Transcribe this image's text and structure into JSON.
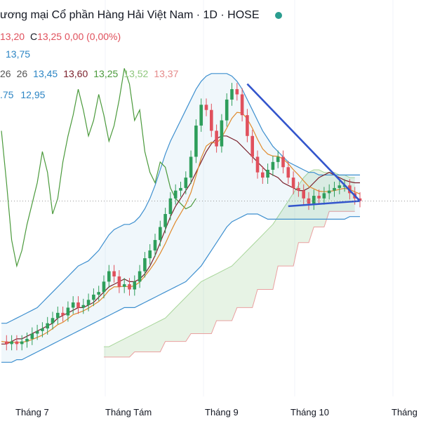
{
  "header": {
    "title": "ương mại Cổ phần Hàng Hải Việt Nam · 1D · HOSE"
  },
  "ohlc": {
    "low_value": "13,20",
    "close_label": "C",
    "close_value": "13,25",
    "change": "0,00 (0,00%)"
  },
  "bb_upper": "13,75",
  "ma_values": [
    {
      "text": "26",
      "color": "#555555"
    },
    {
      "text": "26",
      "color": "#555555"
    },
    {
      "text": "13,45",
      "color": "#2c85c4"
    },
    {
      "text": "13,60",
      "color": "#7a1f2a"
    },
    {
      "text": "13,25",
      "color": "#4b9a3c"
    },
    {
      "text": "13,52",
      "color": "#8fc77e"
    },
    {
      "text": "13,37",
      "color": "#e58a8a"
    }
  ],
  "bb_lower": [
    ".75",
    "12,95"
  ],
  "chart_data": {
    "type": "candlestick",
    "x_ticks": [
      "Tháng 7",
      "Tháng Tám",
      "Tháng 9",
      "Tháng 10",
      "Tháng"
    ],
    "price_line": 13.25,
    "series": [
      {
        "name": "price",
        "values": [
          10.55,
          10.5,
          10.55,
          10.5,
          10.55,
          10.6,
          10.7,
          10.75,
          10.8,
          10.9,
          11.0,
          11.1,
          11.05,
          11.2,
          11.3,
          11.2,
          11.25,
          11.35,
          11.45,
          11.5,
          11.7,
          11.9,
          11.8,
          11.6,
          11.65,
          11.55,
          11.7,
          11.9,
          12.15,
          12.3,
          12.5,
          12.75,
          13.0,
          13.3,
          13.45,
          13.5,
          13.7,
          14.1,
          14.7,
          15.1,
          15.0,
          14.6,
          14.3,
          14.8,
          15.2,
          15.4,
          15.3,
          14.9,
          14.5,
          14.1,
          13.8,
          13.7,
          13.85,
          14.0,
          14.1,
          13.9,
          13.7,
          13.5,
          13.45,
          13.3,
          13.2,
          13.35,
          13.3,
          13.4,
          13.45,
          13.5,
          13.55,
          13.55,
          13.4,
          13.3,
          13.25
        ]
      },
      {
        "name": "ma-brown",
        "values": [
          10.5,
          10.5,
          10.55,
          10.6,
          10.6,
          10.65,
          10.7,
          10.75,
          10.8,
          10.85,
          10.9,
          11.0,
          11.05,
          11.1,
          11.15,
          11.2,
          11.2,
          11.25,
          11.3,
          11.4,
          11.5,
          11.6,
          11.65,
          11.7,
          11.75,
          11.7,
          11.7,
          11.75,
          11.85,
          12.0,
          12.2,
          12.45,
          12.7,
          12.95,
          13.15,
          13.3,
          13.45,
          13.6,
          13.8,
          14.0,
          14.2,
          14.35,
          14.45,
          14.5,
          14.5,
          14.45,
          14.4,
          14.3,
          14.2,
          14.1,
          14.0,
          13.9,
          13.8,
          13.75,
          13.7,
          13.6,
          13.55,
          13.5,
          13.45,
          13.45,
          13.5,
          13.6,
          13.7,
          13.75,
          13.8,
          13.75,
          13.7,
          13.65,
          13.62,
          13.6,
          13.6
        ]
      },
      {
        "name": "bb-upper",
        "values": [
          10.9,
          10.9,
          10.95,
          11.0,
          11.05,
          11.1,
          11.15,
          11.2,
          11.3,
          11.4,
          11.5,
          11.6,
          11.7,
          11.8,
          11.9,
          12.0,
          12.05,
          12.1,
          12.2,
          12.3,
          12.45,
          12.6,
          12.7,
          12.75,
          12.8,
          12.8,
          12.85,
          12.95,
          13.1,
          13.3,
          13.55,
          13.85,
          14.15,
          14.4,
          14.6,
          14.8,
          15.0,
          15.2,
          15.4,
          15.55,
          15.65,
          15.7,
          15.7,
          15.7,
          15.7,
          15.65,
          15.55,
          15.4,
          15.2,
          15.0,
          14.8,
          14.6,
          14.45,
          14.3,
          14.2,
          14.1,
          14.0,
          13.95,
          13.9,
          13.85,
          13.8,
          13.8,
          13.75,
          13.75,
          13.75,
          13.75,
          13.75,
          13.75,
          13.75,
          13.75,
          13.75
        ]
      },
      {
        "name": "bb-lower",
        "values": [
          10.15,
          10.15,
          10.15,
          10.2,
          10.2,
          10.25,
          10.3,
          10.35,
          10.4,
          10.45,
          10.5,
          10.55,
          10.6,
          10.65,
          10.7,
          10.75,
          10.8,
          10.85,
          10.9,
          10.95,
          11.0,
          11.05,
          11.1,
          11.15,
          11.2,
          11.2,
          11.2,
          11.25,
          11.3,
          11.35,
          11.4,
          11.45,
          11.5,
          11.55,
          11.6,
          11.65,
          11.7,
          11.8,
          11.9,
          12.0,
          12.15,
          12.3,
          12.45,
          12.6,
          12.75,
          12.85,
          12.9,
          12.95,
          13.0,
          13.0,
          13.0,
          12.95,
          12.9,
          12.9,
          12.9,
          12.9,
          12.9,
          12.9,
          12.9,
          12.9,
          12.9,
          12.9,
          12.9,
          12.9,
          12.9,
          12.9,
          12.9,
          12.9,
          12.95,
          12.95,
          12.95
        ]
      },
      {
        "name": "lagging-span",
        "values": [
          14.6,
          13.6,
          12.5,
          12.0,
          12.3,
          12.8,
          13.2,
          13.6,
          14.2,
          13.8,
          13.0,
          13.3,
          14.0,
          14.5,
          14.9,
          15.4,
          15.0,
          14.5,
          14.8,
          15.3,
          14.9,
          14.4,
          14.7,
          15.2,
          15.8,
          15.5,
          14.8,
          15.0,
          14.2,
          13.8,
          13.6,
          14.0,
          13.9,
          13.5,
          13.3,
          13.2,
          13.1,
          13.15,
          13.3
        ]
      },
      {
        "name": "cloud-span-a",
        "values": [
          10.45,
          10.45,
          10.5,
          10.55,
          10.6,
          10.65,
          10.7,
          10.75,
          10.8,
          10.85,
          10.9,
          10.95,
          11.0,
          11.1,
          11.2,
          11.3,
          11.4,
          11.5,
          11.6,
          11.7,
          11.75,
          11.8,
          11.85,
          11.9,
          11.95,
          12.0,
          12.1,
          12.2,
          12.3,
          12.4,
          12.5,
          12.6,
          12.7,
          12.8,
          12.95,
          13.1,
          13.25,
          13.4,
          13.55,
          13.7,
          13.8,
          13.85,
          13.85,
          13.8,
          13.8,
          13.8,
          13.75,
          13.75,
          13.7,
          13.7
        ]
      },
      {
        "name": "cloud-span-b",
        "values": [
          10.25,
          10.25,
          10.25,
          10.25,
          10.25,
          10.25,
          10.35,
          10.35,
          10.35,
          10.35,
          10.35,
          10.35,
          10.55,
          10.55,
          10.55,
          10.55,
          10.55,
          10.7,
          10.7,
          10.7,
          10.7,
          10.7,
          10.95,
          10.95,
          10.95,
          10.95,
          11.2,
          11.2,
          11.2,
          11.2,
          11.55,
          11.55,
          11.55,
          11.55,
          12.0,
          12.0,
          12.0,
          12.0,
          12.45,
          12.45,
          12.45,
          12.75,
          12.75,
          12.75,
          13.05,
          13.05,
          13.05,
          13.05,
          13.05,
          13.05
        ]
      }
    ],
    "trendlines": [
      {
        "from": [
          48,
          15.5
        ],
        "to": [
          70,
          13.25
        ]
      },
      {
        "from": [
          56,
          13.15
        ],
        "to": [
          70,
          13.25
        ]
      }
    ]
  }
}
